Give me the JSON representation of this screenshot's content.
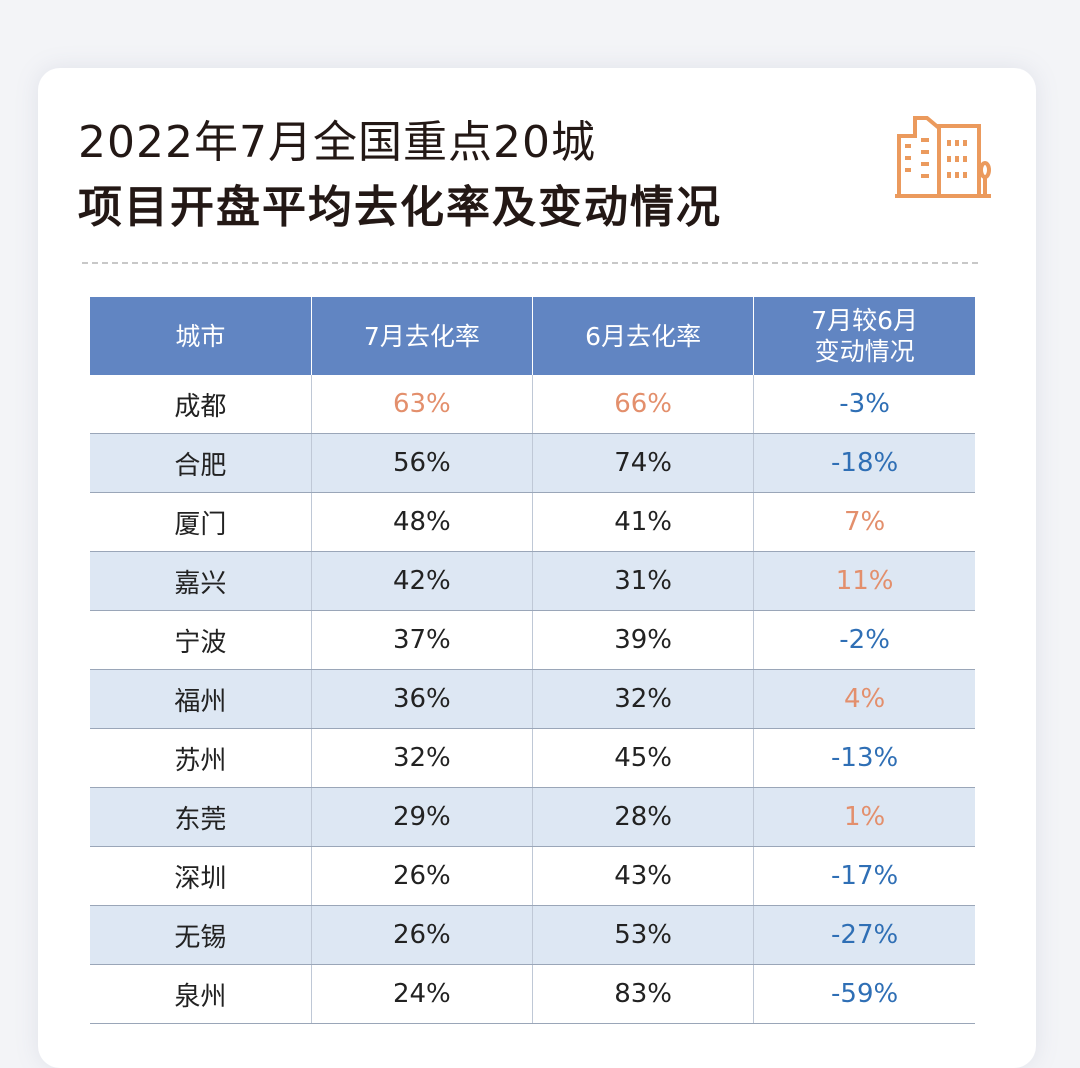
{
  "header": {
    "title_line1": "2022年7月全国重点20城",
    "title_line2": "项目开盘平均去化率及变动情况"
  },
  "table": {
    "columns": [
      "城市",
      "7月去化率",
      "6月去化率",
      "7月较6月\n变动情况"
    ],
    "rows": [
      [
        "成都",
        "63%",
        "66%",
        "-3%"
      ],
      [
        "合肥",
        "56%",
        "74%",
        "-18%"
      ],
      [
        "厦门",
        "48%",
        "41%",
        "7%"
      ],
      [
        "嘉兴",
        "42%",
        "31%",
        "11%"
      ],
      [
        "宁波",
        "37%",
        "39%",
        "-2%"
      ],
      [
        "福州",
        "36%",
        "32%",
        "4%"
      ],
      [
        "苏州",
        "32%",
        "45%",
        "-13%"
      ],
      [
        "东莞",
        "29%",
        "28%",
        "1%"
      ],
      [
        "深圳",
        "26%",
        "43%",
        "-17%"
      ],
      [
        "无锡",
        "26%",
        "53%",
        "-27%"
      ],
      [
        "泉州",
        "24%",
        "83%",
        "-59%"
      ]
    ],
    "header_color": "#6185c2",
    "stripe_color": "#dde7f3",
    "highlight_color": "#e38f6c",
    "negative_color": "#2f6fb5"
  }
}
